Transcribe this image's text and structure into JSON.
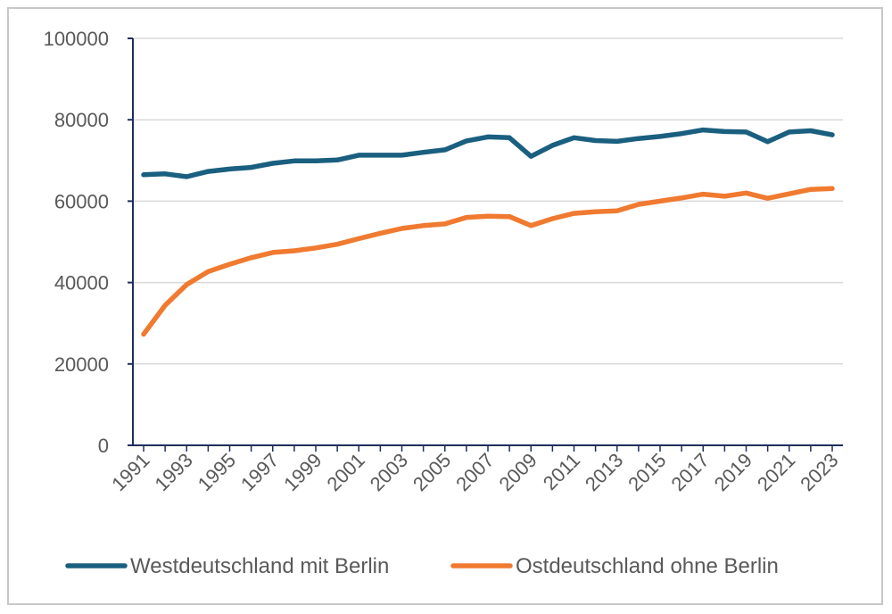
{
  "chart_data": {
    "type": "line",
    "title": "",
    "xlabel": "",
    "ylabel": "",
    "ylim": [
      0,
      100000
    ],
    "yticks": [
      0,
      20000,
      40000,
      60000,
      80000,
      100000
    ],
    "ytick_labels": [
      "0",
      "20000",
      "40000",
      "60000",
      "80000",
      "100000"
    ],
    "x": [
      1991,
      1992,
      1993,
      1994,
      1995,
      1996,
      1997,
      1998,
      1999,
      2000,
      2001,
      2002,
      2003,
      2004,
      2005,
      2006,
      2007,
      2008,
      2009,
      2010,
      2011,
      2012,
      2013,
      2014,
      2015,
      2016,
      2017,
      2018,
      2019,
      2020,
      2021,
      2022,
      2023
    ],
    "xtick_labels": [
      "1991",
      "1993",
      "1995",
      "1997",
      "1999",
      "2001",
      "2003",
      "2005",
      "2007",
      "2009",
      "2011",
      "2013",
      "2015",
      "2017",
      "2019",
      "2021",
      "2023"
    ],
    "grid": true,
    "legend": "bottom",
    "series": [
      {
        "name": "Westdeutschland mit Berlin",
        "color": "#1a5f7f",
        "values": [
          66500,
          66700,
          66000,
          67300,
          67900,
          68300,
          69300,
          69900,
          69900,
          70100,
          71300,
          71300,
          71300,
          72000,
          72600,
          74800,
          75800,
          75600,
          71000,
          73700,
          75600,
          74900,
          74700,
          75400,
          75900,
          76600,
          77500,
          77100,
          77000,
          74600,
          77000,
          77300,
          76300
        ]
      },
      {
        "name": "Ostdeutschland ohne Berlin",
        "color": "#f07a30",
        "values": [
          27300,
          34400,
          39500,
          42700,
          44500,
          46100,
          47400,
          47800,
          48500,
          49400,
          50800,
          52100,
          53300,
          54000,
          54400,
          56000,
          56300,
          56200,
          54000,
          55700,
          57000,
          57400,
          57600,
          59200,
          60000,
          60800,
          61700,
          61200,
          62000,
          60700,
          61800,
          62900,
          63100
        ]
      }
    ]
  }
}
